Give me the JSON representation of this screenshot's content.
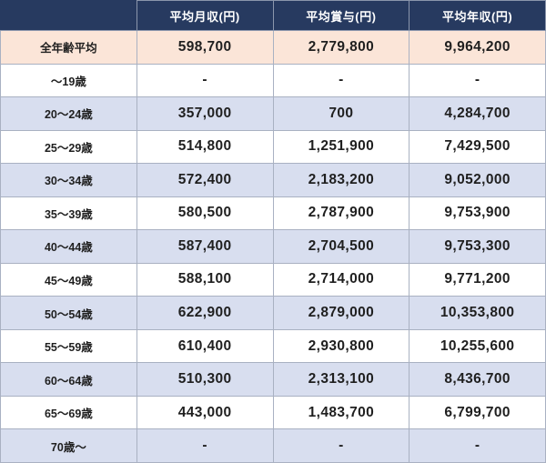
{
  "colors": {
    "header-bg": "#273a60",
    "header-border": "#8b96ac",
    "header-text": "#ffffff",
    "highlight-bg": "#fbe5d8",
    "alt-bg": "#d8deef",
    "plain-bg": "#ffffff",
    "border": "#a9b1c2",
    "text": "#1f1f1f"
  },
  "chart_data": {
    "type": "table",
    "title": "",
    "corner_label": "",
    "columns": [
      "平均月収(円)",
      "平均賞与(円)",
      "平均年収(円)"
    ],
    "rows": [
      {
        "label": "全年齢平均",
        "values": [
          "598,700",
          "2,779,800",
          "9,964,200"
        ],
        "variant": "highlight"
      },
      {
        "label": "～19歳",
        "values": [
          "-",
          "-",
          "-"
        ],
        "variant": "plain"
      },
      {
        "label": "20～24歳",
        "values": [
          "357,000",
          "700",
          "4,284,700"
        ],
        "variant": "alt"
      },
      {
        "label": "25～29歳",
        "values": [
          "514,800",
          "1,251,900",
          "7,429,500"
        ],
        "variant": "plain"
      },
      {
        "label": "30～34歳",
        "values": [
          "572,400",
          "2,183,200",
          "9,052,000"
        ],
        "variant": "alt"
      },
      {
        "label": "35～39歳",
        "values": [
          "580,500",
          "2,787,900",
          "9,753,900"
        ],
        "variant": "plain"
      },
      {
        "label": "40～44歳",
        "values": [
          "587,400",
          "2,704,500",
          "9,753,300"
        ],
        "variant": "alt"
      },
      {
        "label": "45～49歳",
        "values": [
          "588,100",
          "2,714,000",
          "9,771,200"
        ],
        "variant": "plain"
      },
      {
        "label": "50～54歳",
        "values": [
          "622,900",
          "2,879,000",
          "10,353,800"
        ],
        "variant": "alt"
      },
      {
        "label": "55～59歳",
        "values": [
          "610,400",
          "2,930,800",
          "10,255,600"
        ],
        "variant": "plain"
      },
      {
        "label": "60～64歳",
        "values": [
          "510,300",
          "2,313,100",
          "8,436,700"
        ],
        "variant": "alt"
      },
      {
        "label": "65～69歳",
        "values": [
          "443,000",
          "1,483,700",
          "6,799,700"
        ],
        "variant": "plain"
      },
      {
        "label": "70歳～",
        "values": [
          "-",
          "-",
          "-"
        ],
        "variant": "alt"
      }
    ]
  }
}
